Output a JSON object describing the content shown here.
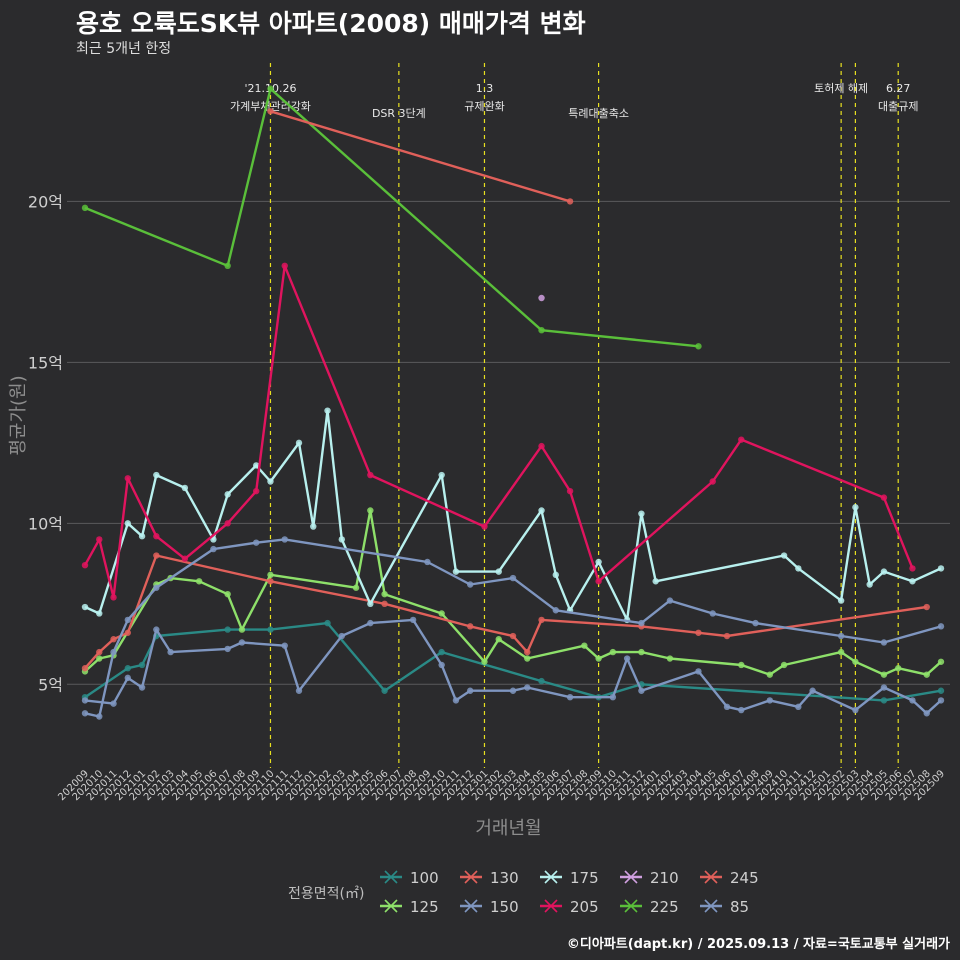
{
  "title": "용호 오륙도SK뷰 아파트(2008) 매매가격 변화",
  "subtitle": "최근 5개년 한정",
  "footer": "©디아파트(dapt.kr) / 2025.09.13 / 자료=국토교통부 실거래가",
  "chart_data": {
    "type": "line",
    "xlabel": "거래년월",
    "ylabel": "평균가(원)",
    "y_ticks": [
      {
        "value": 5,
        "label": "5억"
      },
      {
        "value": 10,
        "label": "10억"
      },
      {
        "value": 15,
        "label": "15억"
      },
      {
        "value": 20,
        "label": "20억"
      }
    ],
    "ylim": [
      2.4,
      24.3
    ],
    "grid": true,
    "x_months": [
      "202009",
      "202010",
      "202011",
      "202012",
      "202101",
      "202102",
      "202103",
      "202104",
      "202105",
      "202106",
      "202107",
      "202108",
      "202109",
      "202110",
      "202111",
      "202112",
      "202201",
      "202202",
      "202203",
      "202204",
      "202205",
      "202206",
      "202207",
      "202208",
      "202209",
      "202210",
      "202211",
      "202212",
      "202301",
      "202302",
      "202303",
      "202304",
      "202305",
      "202306",
      "202307",
      "202308",
      "202309",
      "202310",
      "202311",
      "202312",
      "202401",
      "202402",
      "202403",
      "202404",
      "202405",
      "202406",
      "202407",
      "202408",
      "202409",
      "202410",
      "202411",
      "202412",
      "202501",
      "202502",
      "202503",
      "202504",
      "202505",
      "202506",
      "202507",
      "202508",
      "202509"
    ],
    "x_tick_labels": [
      "202009",
      "202010",
      "202011",
      "202012",
      "202101",
      "202102",
      "202103",
      "202104",
      "202105",
      "202106",
      "202107",
      "202108",
      "202109",
      "202110",
      "202111",
      "202112",
      "202201",
      "202202",
      "202203",
      "202204",
      "202205",
      "202206",
      "202207",
      "202208",
      "202209",
      "202210",
      "202211",
      "202212",
      "202301",
      "202302",
      "202303",
      "202304",
      "202305",
      "202306",
      "202307",
      "202308",
      "202309",
      "202310",
      "202311",
      "202312",
      "202401",
      "202402",
      "202403",
      "202404",
      "202405",
      "202406",
      "202407",
      "202408",
      "202409",
      "202410",
      "202411",
      "202412",
      "202501",
      "202502",
      "202503",
      "202504",
      "202505",
      "202506",
      "202507",
      "202508",
      "202509"
    ],
    "events": [
      {
        "month": "202110",
        "label1": "'21.10.26",
        "label2": "가계부채관리강화"
      },
      {
        "month": "202207",
        "label1": "",
        "label2": "DSR 3단계"
      },
      {
        "month": "202301",
        "label1": "1.3",
        "label2": "규제완화"
      },
      {
        "month": "202309",
        "label1": "",
        "label2": "특례대출축소"
      },
      {
        "month": "202502",
        "label1": "토허제 해제",
        "label2": ""
      },
      {
        "month": "202503",
        "label1": "",
        "label2": ""
      },
      {
        "month": "202506",
        "label1": "6.27",
        "label2": "대출규제"
      }
    ],
    "legend_title": "전용면적(㎡)",
    "legend_position": "bottom",
    "series": [
      {
        "name": "100",
        "color": "#2a8a86",
        "points": [
          [
            "202009",
            4.6
          ],
          [
            "202012",
            5.5
          ],
          [
            "202101",
            5.6
          ],
          [
            "202102",
            6.5
          ],
          [
            "202107",
            6.7
          ],
          [
            "202110",
            6.7
          ],
          [
            "202202",
            6.9
          ],
          [
            "202206",
            4.8
          ],
          [
            "202210",
            6.0
          ],
          [
            "202305",
            5.1
          ],
          [
            "202309",
            4.6
          ],
          [
            "202312",
            5.0
          ],
          [
            "202505",
            4.5
          ],
          [
            "202509",
            4.8
          ]
        ]
      },
      {
        "name": "125",
        "color": "#8ee06a",
        "points": [
          [
            "202009",
            5.4
          ],
          [
            "202010",
            5.8
          ],
          [
            "202011",
            5.9
          ],
          [
            "202102",
            8.1
          ],
          [
            "202103",
            8.3
          ],
          [
            "202105",
            8.2
          ],
          [
            "202107",
            7.8
          ],
          [
            "202108",
            6.7
          ],
          [
            "202110",
            8.4
          ],
          [
            "202204",
            8.0
          ],
          [
            "202205",
            10.4
          ],
          [
            "202206",
            7.8
          ],
          [
            "202210",
            7.2
          ],
          [
            "202301",
            5.7
          ],
          [
            "202302",
            6.4
          ],
          [
            "202304",
            5.8
          ],
          [
            "202308",
            6.2
          ],
          [
            "202309",
            5.8
          ],
          [
            "202310",
            6.0
          ],
          [
            "202312",
            6.0
          ],
          [
            "202402",
            5.8
          ],
          [
            "202407",
            5.6
          ],
          [
            "202409",
            5.3
          ],
          [
            "202410",
            5.6
          ],
          [
            "202502",
            6.0
          ],
          [
            "202503",
            5.7
          ],
          [
            "202505",
            5.3
          ],
          [
            "202506",
            5.5
          ],
          [
            "202508",
            5.3
          ],
          [
            "202509",
            5.7
          ]
        ]
      },
      {
        "name": "130",
        "color": "#e0605a",
        "points": [
          [
            "202009",
            5.5
          ],
          [
            "202010",
            6.0
          ],
          [
            "202011",
            6.4
          ],
          [
            "202012",
            6.6
          ],
          [
            "202102",
            9.0
          ],
          [
            "202110",
            8.2
          ],
          [
            "202206",
            7.5
          ],
          [
            "202212",
            6.8
          ],
          [
            "202303",
            6.5
          ],
          [
            "202304",
            6.0
          ],
          [
            "202305",
            7.0
          ],
          [
            "202312",
            6.8
          ],
          [
            "202404",
            6.6
          ],
          [
            "202406",
            6.5
          ],
          [
            "202508",
            7.4
          ]
        ]
      },
      {
        "name": "150",
        "color": "#7f96c0",
        "points": [
          [
            "202009",
            4.5
          ],
          [
            "202011",
            4.4
          ],
          [
            "202012",
            5.2
          ],
          [
            "202101",
            4.9
          ],
          [
            "202102",
            6.7
          ],
          [
            "202103",
            6.0
          ],
          [
            "202107",
            6.1
          ],
          [
            "202108",
            6.3
          ],
          [
            "202111",
            6.2
          ],
          [
            "202112",
            4.8
          ],
          [
            "202203",
            6.5
          ],
          [
            "202205",
            6.9
          ],
          [
            "202208",
            7.0
          ],
          [
            "202210",
            5.6
          ],
          [
            "202211",
            4.5
          ],
          [
            "202212",
            4.8
          ],
          [
            "202303",
            4.8
          ],
          [
            "202304",
            4.9
          ],
          [
            "202307",
            4.6
          ],
          [
            "202310",
            4.6
          ],
          [
            "202311",
            5.8
          ],
          [
            "202312",
            4.8
          ],
          [
            "202404",
            5.4
          ],
          [
            "202406",
            4.3
          ],
          [
            "202407",
            4.2
          ],
          [
            "202409",
            4.5
          ],
          [
            "202411",
            4.3
          ],
          [
            "202412",
            4.8
          ],
          [
            "202503",
            4.2
          ],
          [
            "202505",
            4.9
          ],
          [
            "202507",
            4.5
          ],
          [
            "202508",
            4.1
          ],
          [
            "202509",
            4.5
          ]
        ]
      },
      {
        "name": "175",
        "color": "#b8f0ee",
        "points": [
          [
            "202009",
            7.4
          ],
          [
            "202010",
            7.2
          ],
          [
            "202012",
            10.0
          ],
          [
            "202101",
            9.6
          ],
          [
            "202102",
            11.5
          ],
          [
            "202104",
            11.1
          ],
          [
            "202106",
            9.5
          ],
          [
            "202107",
            10.9
          ],
          [
            "202109",
            11.8
          ],
          [
            "202110",
            11.3
          ],
          [
            "202112",
            12.5
          ],
          [
            "202201",
            9.9
          ],
          [
            "202202",
            13.5
          ],
          [
            "202203",
            9.5
          ],
          [
            "202205",
            7.5
          ],
          [
            "202210",
            11.5
          ],
          [
            "202211",
            8.5
          ],
          [
            "202302",
            8.5
          ],
          [
            "202305",
            10.4
          ],
          [
            "202306",
            8.4
          ],
          [
            "202307",
            7.3
          ],
          [
            "202309",
            8.8
          ],
          [
            "202311",
            7.0
          ],
          [
            "202312",
            10.3
          ],
          [
            "202401",
            8.2
          ],
          [
            "202410",
            9.0
          ],
          [
            "202411",
            8.6
          ],
          [
            "202502",
            7.6
          ],
          [
            "202503",
            10.5
          ],
          [
            "202504",
            8.1
          ],
          [
            "202505",
            8.5
          ],
          [
            "202507",
            8.2
          ],
          [
            "202509",
            8.6
          ]
        ]
      },
      {
        "name": "205",
        "color": "#e0145e",
        "points": [
          [
            "202009",
            8.7
          ],
          [
            "202010",
            9.5
          ],
          [
            "202011",
            7.7
          ],
          [
            "202012",
            11.4
          ],
          [
            "202102",
            9.6
          ],
          [
            "202104",
            8.9
          ],
          [
            "202107",
            10.0
          ],
          [
            "202109",
            11.0
          ],
          [
            "202111",
            18.0
          ],
          [
            "202205",
            11.5
          ],
          [
            "202301",
            9.9
          ],
          [
            "202305",
            12.4
          ],
          [
            "202307",
            11.0
          ],
          [
            "202309",
            8.2
          ],
          [
            "202405",
            11.3
          ],
          [
            "202407",
            12.6
          ],
          [
            "202505",
            10.8
          ],
          [
            "202507",
            8.6
          ]
        ]
      },
      {
        "name": "210",
        "color": "#d0a0e0",
        "points": [
          [
            "202305",
            17.0
          ]
        ]
      },
      {
        "name": "225",
        "color": "#5abf3a",
        "points": [
          [
            "202009",
            19.8
          ],
          [
            "202107",
            18.0
          ],
          [
            "202110",
            23.5
          ],
          [
            "202305",
            16.0
          ],
          [
            "202404",
            15.5
          ]
        ]
      },
      {
        "name": "245",
        "color": "#e0605a",
        "points": [
          [
            "202110",
            22.8
          ],
          [
            "202307",
            20.0
          ]
        ]
      },
      {
        "name": "85",
        "color": "#7f96c0",
        "points": [
          [
            "202009",
            4.1
          ],
          [
            "202010",
            4.0
          ],
          [
            "202011",
            6.0
          ],
          [
            "202012",
            7.0
          ],
          [
            "202102",
            8.0
          ],
          [
            "202106",
            9.2
          ],
          [
            "202109",
            9.4
          ],
          [
            "202111",
            9.5
          ],
          [
            "202209",
            8.8
          ],
          [
            "202212",
            8.1
          ],
          [
            "202303",
            8.3
          ],
          [
            "202306",
            7.3
          ],
          [
            "202312",
            6.9
          ],
          [
            "202402",
            7.6
          ],
          [
            "202405",
            7.2
          ],
          [
            "202408",
            6.9
          ],
          [
            "202502",
            6.5
          ],
          [
            "202505",
            6.3
          ],
          [
            "202509",
            6.8
          ]
        ]
      }
    ],
    "legend": [
      {
        "name": "100",
        "color": "#2a8a86"
      },
      {
        "name": "125",
        "color": "#8ee06a"
      },
      {
        "name": "130",
        "color": "#e0605a"
      },
      {
        "name": "150",
        "color": "#7f96c0"
      },
      {
        "name": "175",
        "color": "#b8f0ee"
      },
      {
        "name": "205",
        "color": "#e0145e"
      },
      {
        "name": "210",
        "color": "#d0a0e0"
      },
      {
        "name": "225",
        "color": "#5abf3a"
      },
      {
        "name": "245",
        "color": "#e0605a"
      },
      {
        "name": "85",
        "color": "#7f96c0"
      }
    ]
  }
}
